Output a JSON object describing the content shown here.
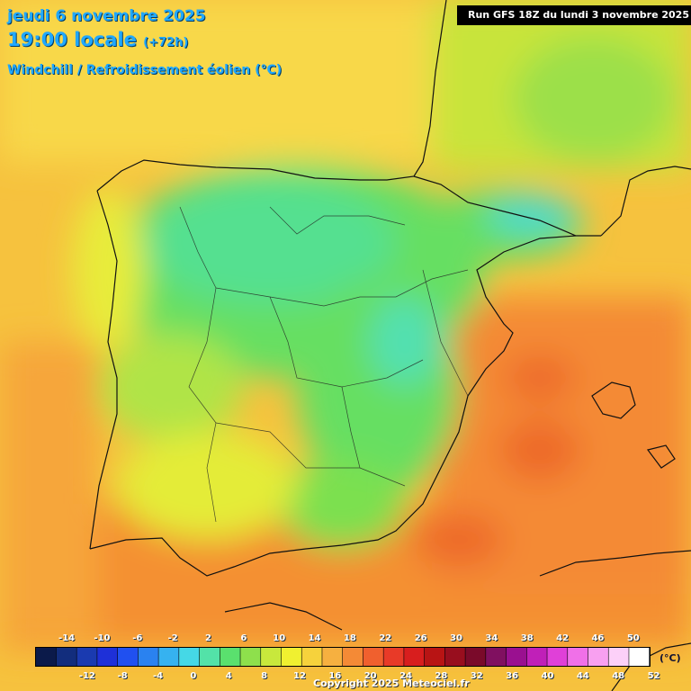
{
  "header": {
    "date_line": "jeudi 6 novembre 2025",
    "time_line": "19:00 locale",
    "lead_time": "(+72h)",
    "parameter": "Windchill / Refroidissement éolien (°C)",
    "run_info": "Run GFS 18Z du lundi 3 novembre 2025"
  },
  "legend": {
    "unit": "(°C)",
    "top_ticks": [
      "-14",
      "-10",
      "-6",
      "-2",
      "2",
      "6",
      "10",
      "14",
      "18",
      "22",
      "26",
      "30",
      "34",
      "38",
      "42",
      "46",
      "50"
    ],
    "bottom_ticks": [
      "-12",
      "-8",
      "-4",
      "0",
      "4",
      "8",
      "12",
      "16",
      "20",
      "24",
      "28",
      "32",
      "36",
      "40",
      "44",
      "48",
      "52"
    ],
    "colors": [
      "#0b1a4a",
      "#122d7d",
      "#1a3ab0",
      "#1e30d8",
      "#2050f0",
      "#2a82f0",
      "#36b2f0",
      "#45d8e6",
      "#53e2a8",
      "#5ae06e",
      "#8ee04c",
      "#c8e83c",
      "#f0f030",
      "#f6d23c",
      "#f6b040",
      "#f48a36",
      "#f0602e",
      "#e83a28",
      "#d81e1e",
      "#b81414",
      "#980e1e",
      "#7a0a2a",
      "#801060",
      "#9a1090",
      "#c020b8",
      "#e040d8",
      "#f070e8",
      "#f8a0f0",
      "#fcd0f8",
      "#ffffff"
    ]
  },
  "copyright": "Copyright 2025 Meteociel.fr"
}
